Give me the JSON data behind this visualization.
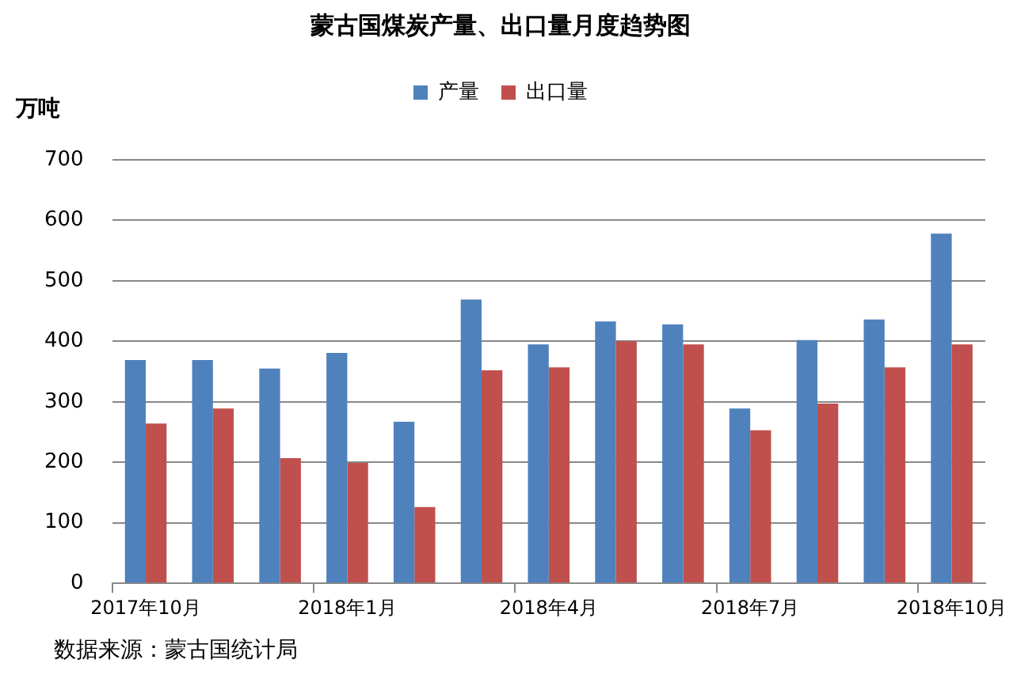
{
  "chart_data": {
    "type": "bar",
    "title": "蒙古国煤炭产量、出口量月度趋势图",
    "ylabel": "万吨",
    "categories": [
      "2017年10月",
      null,
      null,
      "2018年1月",
      null,
      null,
      "2018年4月",
      null,
      null,
      "2018年7月",
      null,
      null,
      "2018年10月"
    ],
    "series": [
      {
        "name": "产量",
        "color": "#4f81bd",
        "values": [
          369,
          369,
          355,
          381,
          267,
          469,
          395,
          433,
          428,
          289,
          402,
          436,
          578
        ]
      },
      {
        "name": "出口量",
        "color": "#c0504d",
        "values": [
          264,
          289,
          207,
          199,
          126,
          352,
          357,
          400,
          395,
          253,
          297,
          357,
          395
        ]
      }
    ],
    "ylim": [
      0,
      700
    ],
    "yticks": [
      0,
      100,
      200,
      300,
      400,
      500,
      600,
      700
    ],
    "grid": "y",
    "legend": "top",
    "annotations": [
      "数据来源：蒙古国统计局"
    ]
  }
}
